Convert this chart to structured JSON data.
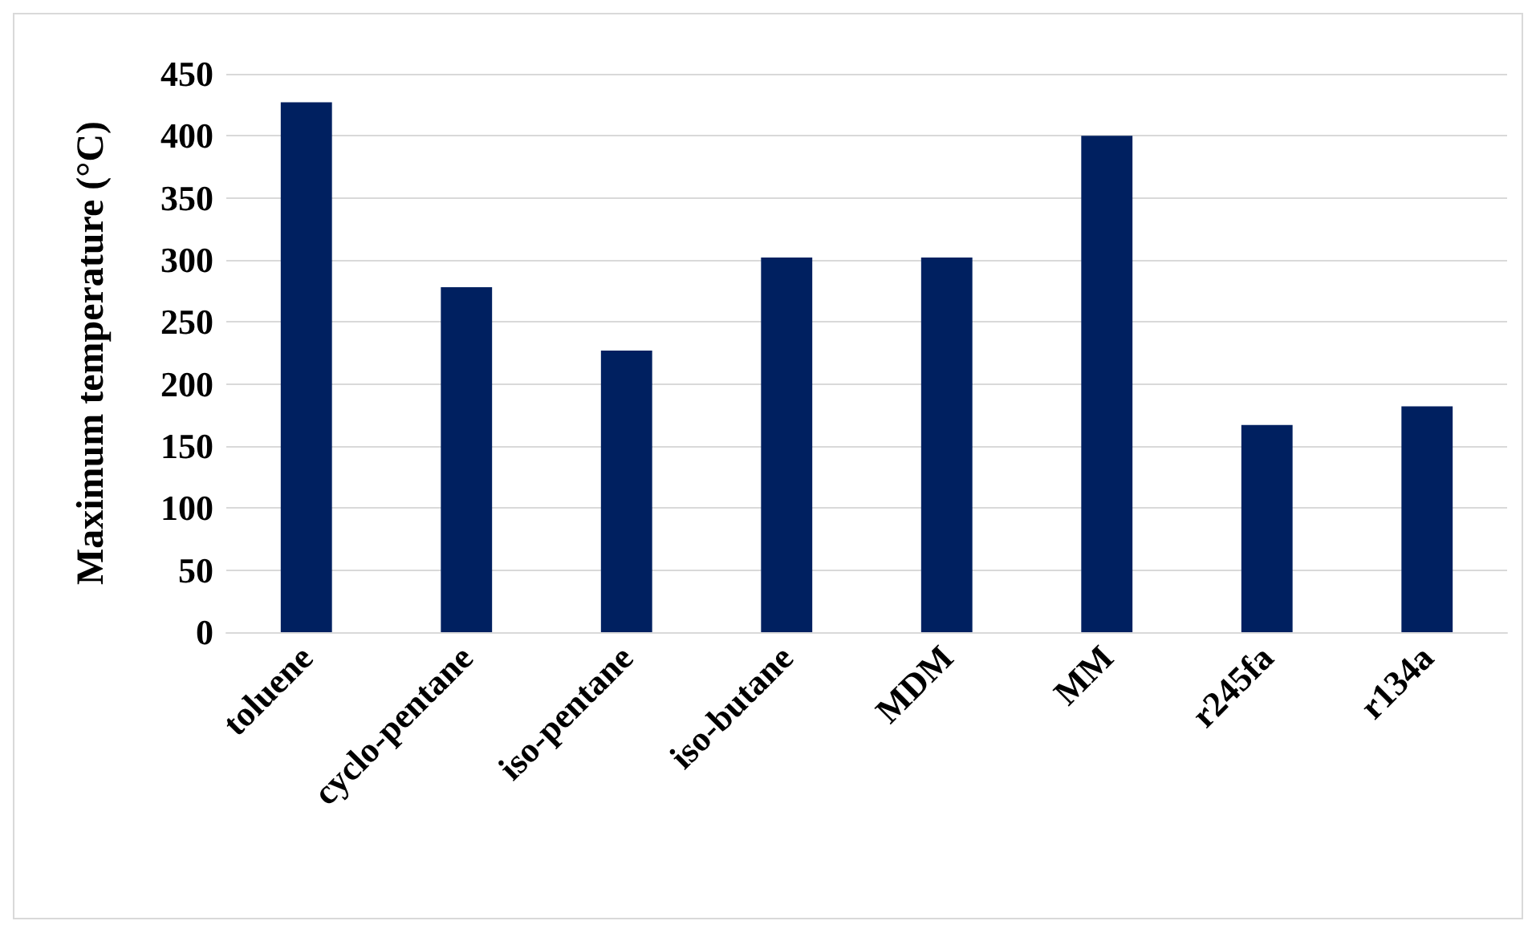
{
  "chart_data": {
    "type": "bar",
    "ylabel": "Maximum temperature (°C)",
    "categories": [
      "toluene",
      "cyclo-pentane",
      "iso-pentane",
      "iso-butane",
      "MDM",
      "MM",
      "r245fa",
      "r134a"
    ],
    "values": [
      427,
      278,
      227,
      302,
      302,
      400,
      167,
      182
    ],
    "color": "#002060",
    "ylim": [
      0,
      450
    ],
    "yticks": [
      0,
      50,
      100,
      150,
      200,
      250,
      300,
      350,
      400,
      450
    ],
    "grid": "y"
  }
}
